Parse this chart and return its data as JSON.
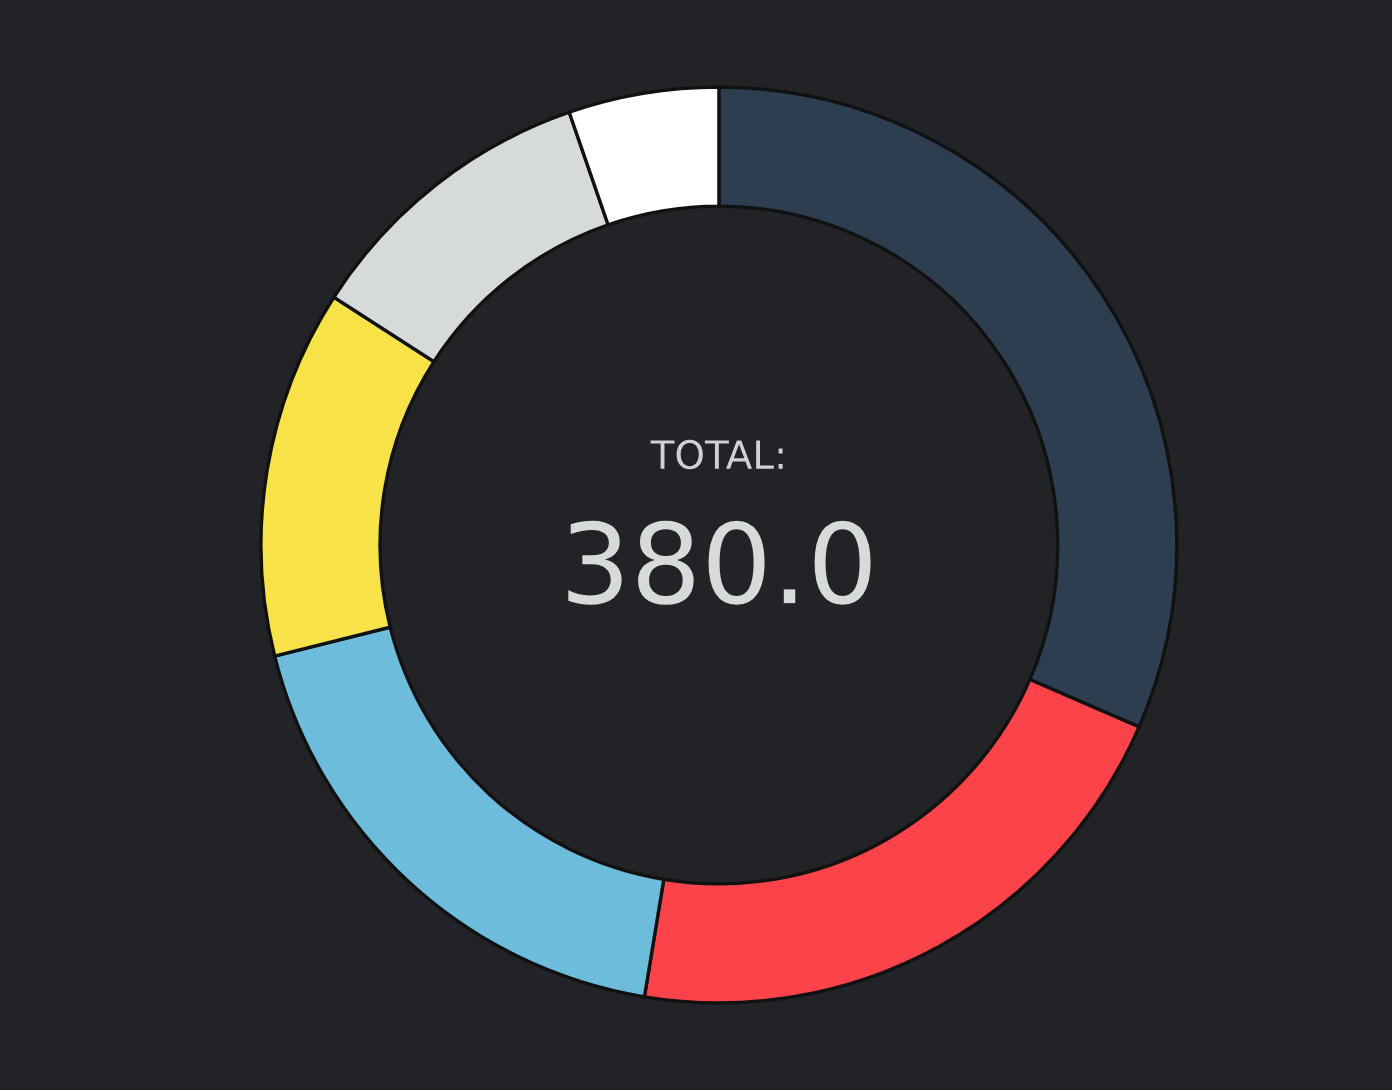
{
  "chart_data": {
    "type": "donut",
    "categories": [
      null,
      null,
      null,
      null,
      null,
      null
    ],
    "values": [
      31.5,
      21.1,
      18.5,
      13.0,
      10.6,
      5.3
    ],
    "colors": [
      "#2c3e50",
      "#fc4349",
      "#6dbcdb",
      "#f7e248",
      "#d7dadb",
      "#ffffff"
    ],
    "annotations": [
      "TOTAL:",
      "380.0"
    ],
    "legend": false
  }
}
